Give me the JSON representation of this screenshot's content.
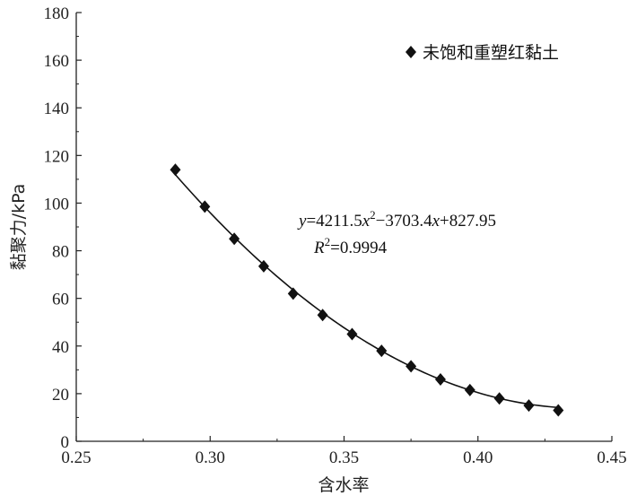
{
  "chart_data": {
    "type": "scatter",
    "xlabel": "含水率",
    "ylabel": "黏聚力/kPa",
    "xlim": [
      0.25,
      0.45
    ],
    "ylim": [
      0,
      180
    ],
    "x_ticks": [
      "0.25",
      "0.30",
      "0.35",
      "0.40",
      "0.45"
    ],
    "y_ticks": [
      "0",
      "20",
      "40",
      "60",
      "80",
      "100",
      "120",
      "140",
      "160",
      "180"
    ],
    "grid": false,
    "legend": {
      "position": "top-right",
      "label": "未饱和重塑红黏土",
      "marker": "diamond"
    },
    "series": [
      {
        "name": "未饱和重塑红黏土",
        "marker": "diamond",
        "color": "#111111",
        "x": [
          0.287,
          0.298,
          0.309,
          0.32,
          0.331,
          0.342,
          0.353,
          0.364,
          0.375,
          0.386,
          0.397,
          0.408,
          0.419,
          0.43
        ],
        "y": [
          114,
          98.5,
          85,
          73.5,
          62,
          53,
          45,
          38,
          31.5,
          26,
          21.5,
          18,
          15,
          13
        ]
      }
    ],
    "fit": {
      "a": 4211.5,
      "b": -3703.4,
      "c": 827.95,
      "x_range": [
        0.287,
        0.43
      ],
      "equation_parts": [
        "y",
        "=4211.5",
        "x",
        "2",
        "−3703.4",
        "x",
        "+827.95"
      ],
      "r2_parts": [
        "R",
        "2",
        "=0.9994"
      ]
    }
  }
}
